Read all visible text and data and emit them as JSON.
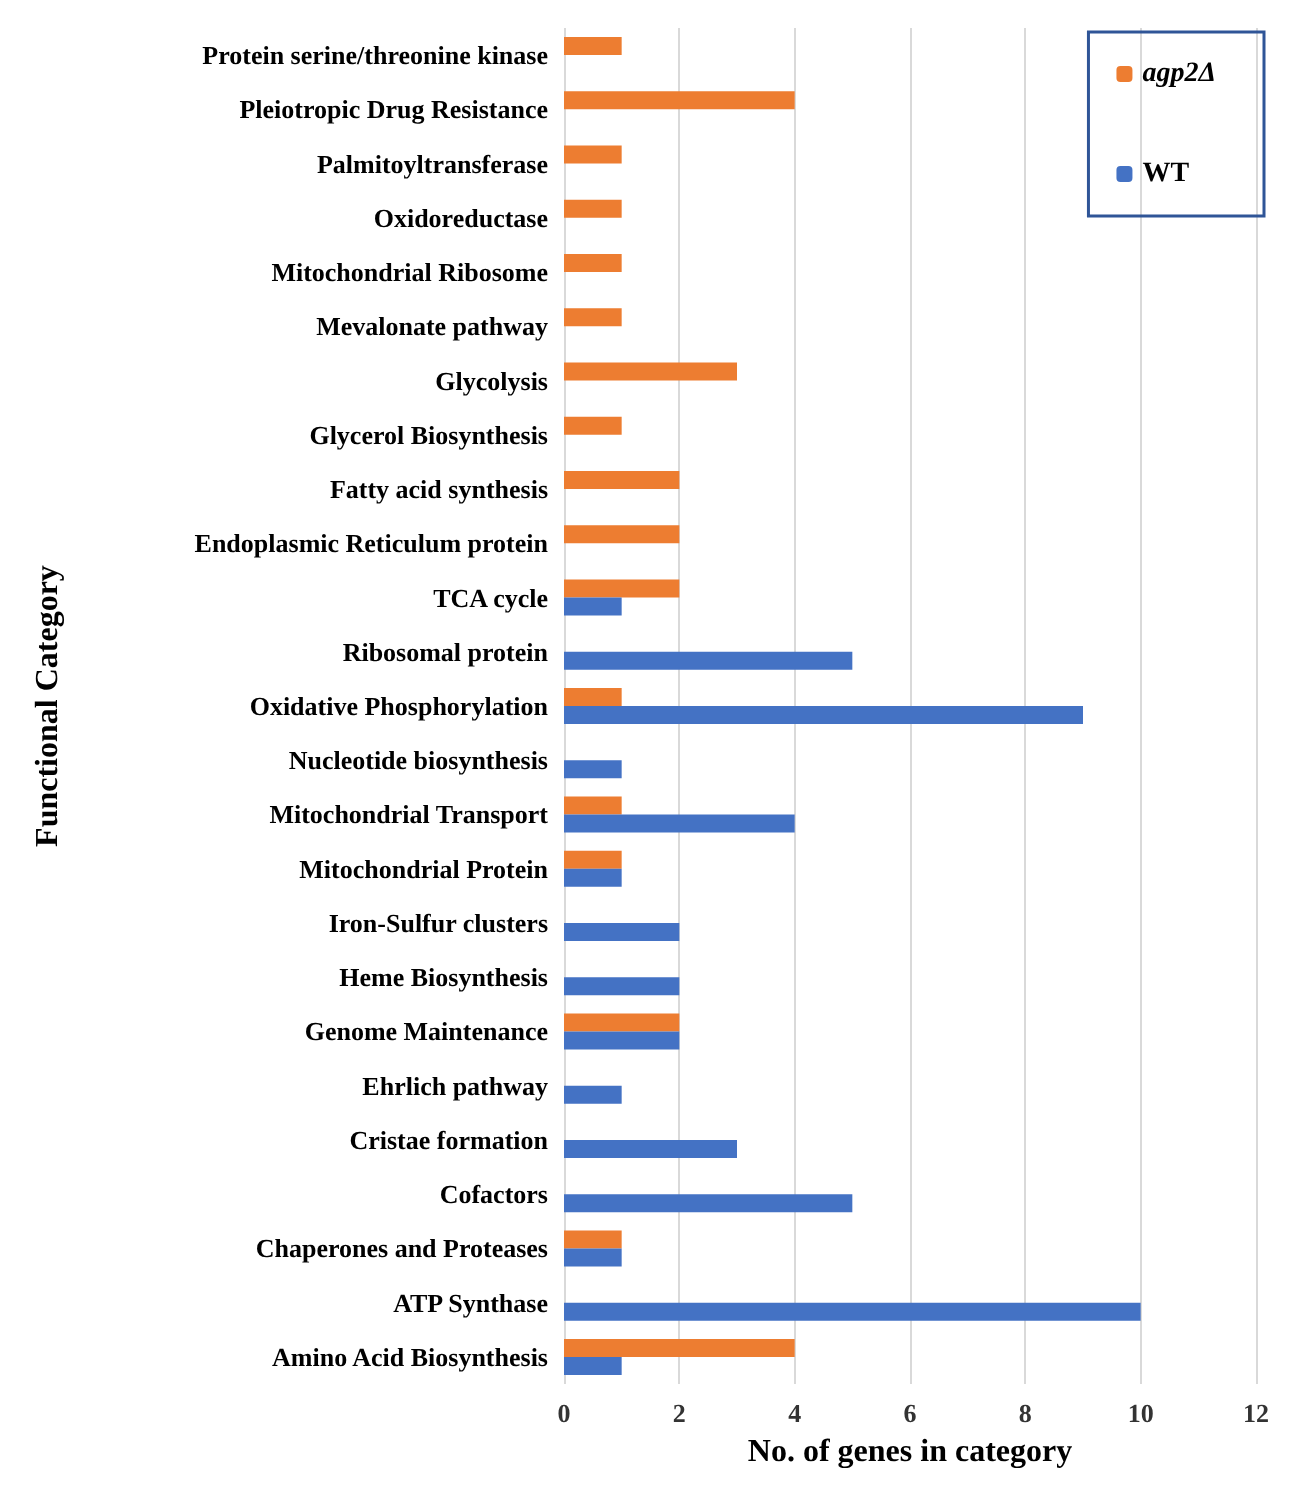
{
  "chart_data": {
    "type": "bar",
    "orientation": "horizontal",
    "xlabel": "No. of genes in category",
    "ylabel": "Functional Category",
    "categories": [
      "Protein serine/threonine kinase",
      "Pleiotropic Drug Resistance",
      "Palmitoyltransferase",
      "Oxidoreductase",
      "Mitochondrial Ribosome",
      "Mevalonate pathway",
      "Glycolysis",
      "Glycerol Biosynthesis",
      "Fatty acid synthesis",
      "Endoplasmic Reticulum protein",
      "TCA cycle",
      "Ribosomal protein",
      "Oxidative Phosphorylation",
      "Nucleotide biosynthesis",
      "Mitochondrial Transport",
      "Mitochondrial Protein",
      "Iron-Sulfur clusters",
      "Heme Biosynthesis",
      "Genome Maintenance",
      "Ehrlich pathway",
      "Cristae formation",
      "Cofactors",
      "Chaperones and Proteases",
      "ATP Synthase",
      "Amino Acid Biosynthesis"
    ],
    "series": [
      {
        "name": "agp2Δ",
        "color": "#ed7d31",
        "values": [
          1,
          4,
          1,
          1,
          1,
          1,
          3,
          1,
          2,
          2,
          2,
          0,
          1,
          0,
          1,
          1,
          0,
          0,
          2,
          0,
          0,
          0,
          1,
          0,
          4
        ]
      },
      {
        "name": "WT",
        "color": "#4472c4",
        "values": [
          0,
          0,
          0,
          0,
          0,
          0,
          0,
          0,
          0,
          0,
          1,
          5,
          9,
          1,
          4,
          1,
          2,
          2,
          2,
          1,
          3,
          5,
          1,
          10,
          1
        ]
      }
    ],
    "xlim": [
      0,
      12
    ],
    "xticks": [
      0,
      2,
      4,
      6,
      8,
      10,
      12
    ],
    "grid": "x",
    "legend": "top right"
  }
}
